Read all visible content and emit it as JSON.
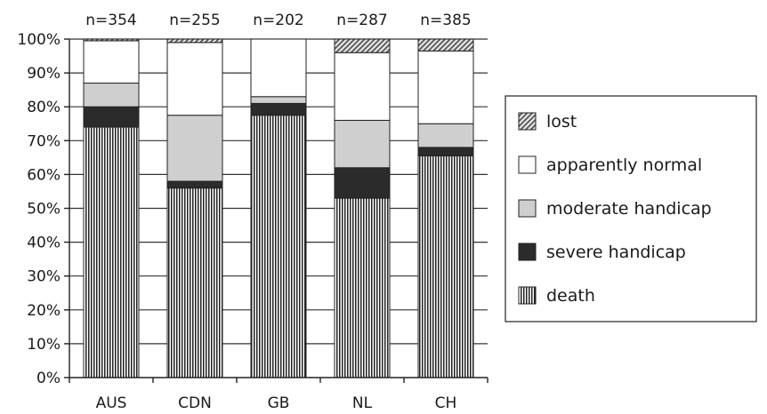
{
  "chart_data": {
    "type": "bar",
    "stacked": true,
    "percent_scale": true,
    "categories": [
      "AUS",
      "CDN",
      "GB",
      "NL",
      "CH"
    ],
    "sample_sizes": [
      "n=354",
      "n=255",
      "n=202",
      "n=287",
      "n=385"
    ],
    "series": [
      {
        "name": "death",
        "values": [
          74,
          56,
          77.5,
          53,
          65.5
        ]
      },
      {
        "name": "severe handicap",
        "values": [
          6,
          2,
          3.5,
          9,
          2.5
        ]
      },
      {
        "name": "moderate handicap",
        "values": [
          7,
          19.5,
          2,
          14,
          7
        ]
      },
      {
        "name": "apparently normal",
        "values": [
          12.5,
          21.5,
          17,
          20,
          21.5
        ]
      },
      {
        "name": "lost",
        "values": [
          0.5,
          1,
          0,
          4,
          3.5
        ]
      }
    ],
    "ylim": [
      0,
      100
    ],
    "yticks": [
      "0%",
      "10%",
      "20%",
      "30%",
      "40%",
      "50%",
      "60%",
      "70%",
      "80%",
      "90%",
      "100%"
    ],
    "grid": true,
    "legend_position": "right",
    "legend_order": [
      "lost",
      "apparently normal",
      "moderate handicap",
      "severe handicap",
      "death"
    ],
    "xlabel": "",
    "ylabel": "",
    "title": ""
  }
}
